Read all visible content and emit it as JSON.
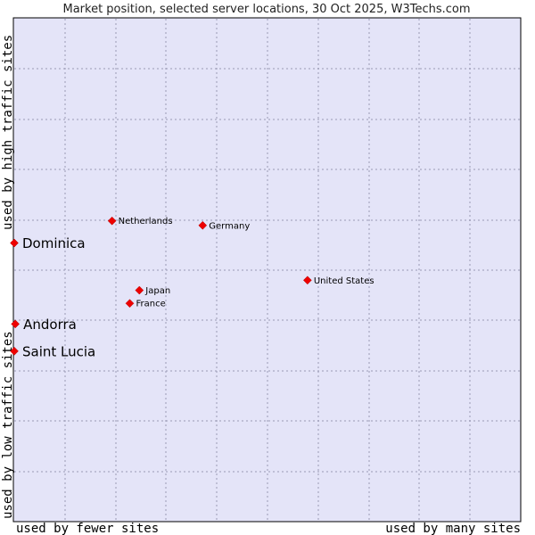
{
  "chart_data": {
    "type": "scatter",
    "title": "Market position, selected server locations, 30 Oct 2025, W3Techs.com",
    "xlabel_left": "used by fewer sites",
    "xlabel_right": "used by many sites",
    "ylabel_top": "used by high traffic sites",
    "ylabel_bottom": "used by low traffic sites",
    "xlim": [
      0,
      100
    ],
    "ylim": [
      0,
      100
    ],
    "grid": true,
    "points": [
      {
        "name": "Dominica",
        "x": 0,
        "y": 55.4,
        "emphasis": true
      },
      {
        "name": "Andorra",
        "x": 0.2,
        "y": 39.3,
        "emphasis": true
      },
      {
        "name": "Saint Lucia",
        "x": 0,
        "y": 33.9,
        "emphasis": true
      },
      {
        "name": "Netherlands",
        "x": 19.3,
        "y": 59.8,
        "emphasis": false
      },
      {
        "name": "Germany",
        "x": 37.2,
        "y": 58.9,
        "emphasis": false
      },
      {
        "name": "United States",
        "x": 57.9,
        "y": 48.0,
        "emphasis": false
      },
      {
        "name": "Japan",
        "x": 24.7,
        "y": 46.0,
        "emphasis": false
      },
      {
        "name": "France",
        "x": 22.8,
        "y": 43.4,
        "emphasis": false
      }
    ]
  },
  "colors": {
    "plot_background": "#e4e4f8",
    "point_fill": "#ee0000",
    "border": "#000000"
  }
}
